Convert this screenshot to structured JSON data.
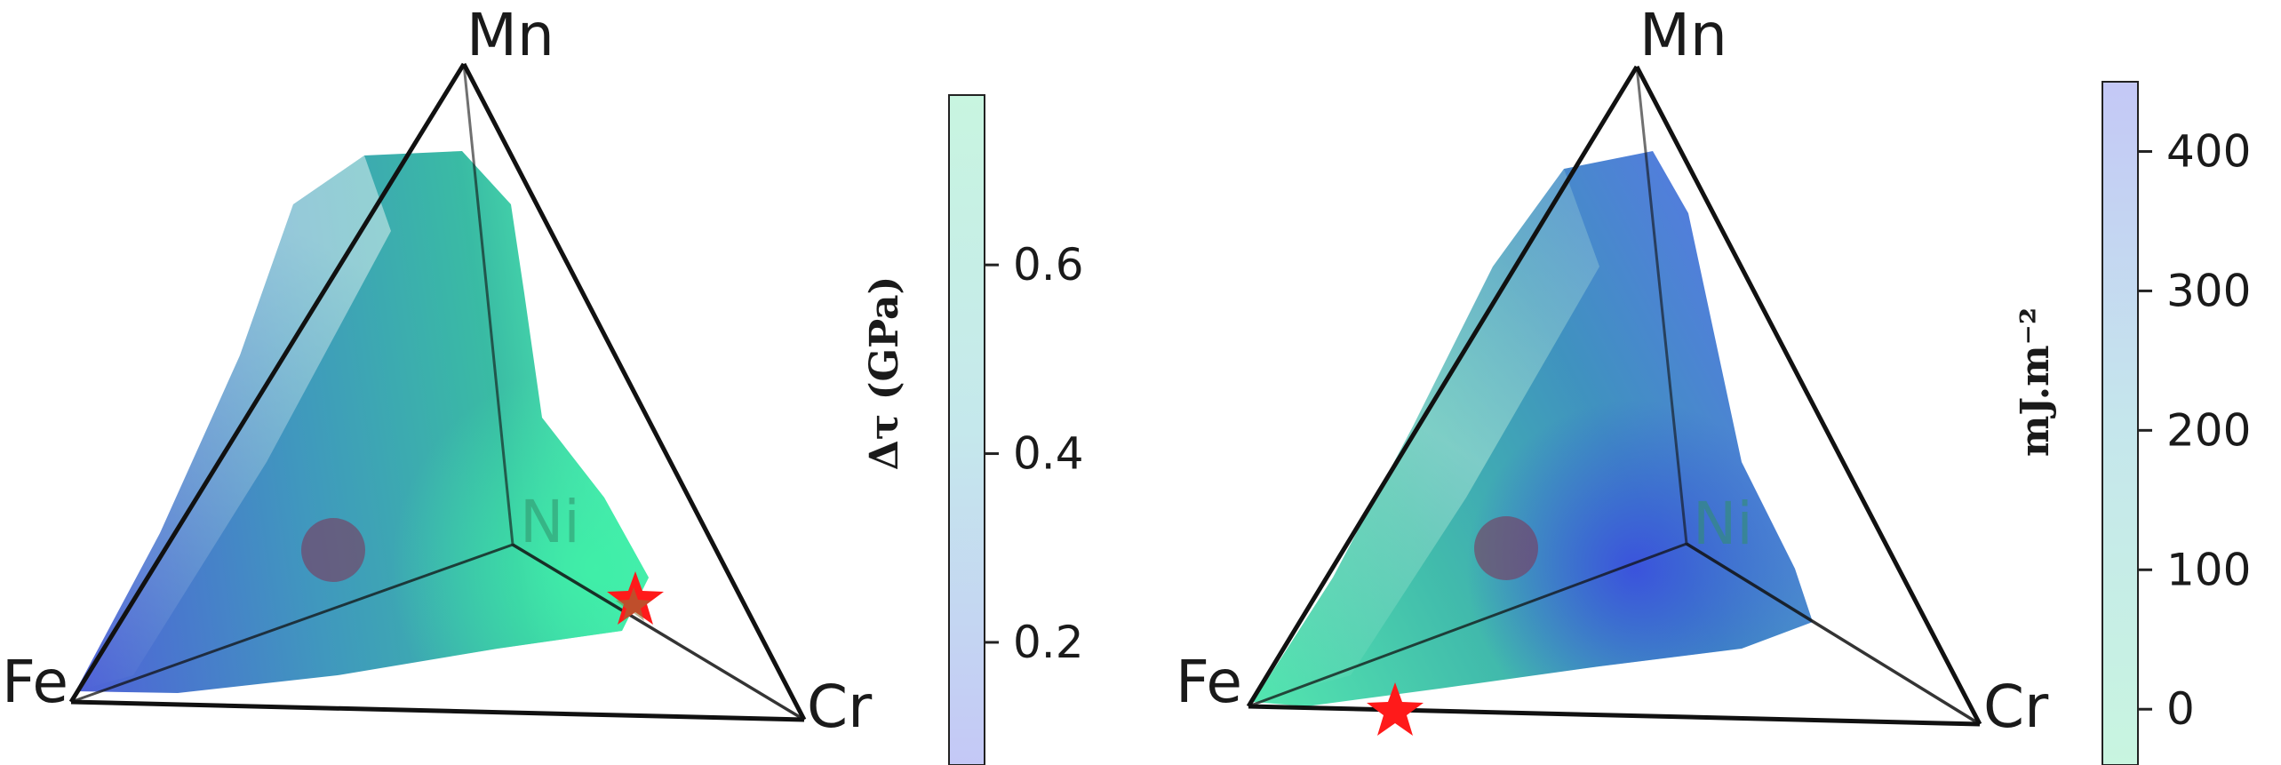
{
  "colors": {
    "low_blue": "#4a5ce0",
    "mid_teal": "#2f9fa0",
    "high_green": "#3fe8a8",
    "pale_green": "#c8f5e0",
    "pale_blue": "#c8ccf8",
    "marker_circle": "#7a3a5e",
    "marker_star": "#ff1a1a",
    "edge": "#111111"
  },
  "chart_data": [
    {
      "type": "ternary-heatmap",
      "vertices": [
        "Mn",
        "Fe",
        "Ni",
        "Cr"
      ],
      "colorbar": {
        "title": "Δτ (GPa)",
        "ticks": [
          "0.6",
          "0.4",
          "0.2"
        ],
        "tick_values": [
          0.6,
          0.4,
          0.2
        ],
        "range": [
          0.07,
          0.78
        ],
        "colormap": [
          "#4a5ce0",
          "#2fb0a0",
          "#3fe8a8"
        ]
      },
      "markers": [
        {
          "shape": "circle"
        },
        {
          "shape": "star"
        }
      ]
    },
    {
      "type": "ternary-heatmap",
      "vertices": [
        "Mn",
        "Fe",
        "Ni",
        "Cr"
      ],
      "colorbar": {
        "title": "mJ.m⁻²",
        "ticks": [
          "400",
          "300",
          "200",
          "100",
          "0"
        ],
        "tick_values": [
          400,
          300,
          200,
          100,
          0
        ],
        "range": [
          -40,
          450
        ],
        "colormap": [
          "#3fe8a8",
          "#2fa0a0",
          "#4a5ce0"
        ]
      },
      "markers": [
        {
          "shape": "circle"
        },
        {
          "shape": "star"
        }
      ]
    }
  ]
}
